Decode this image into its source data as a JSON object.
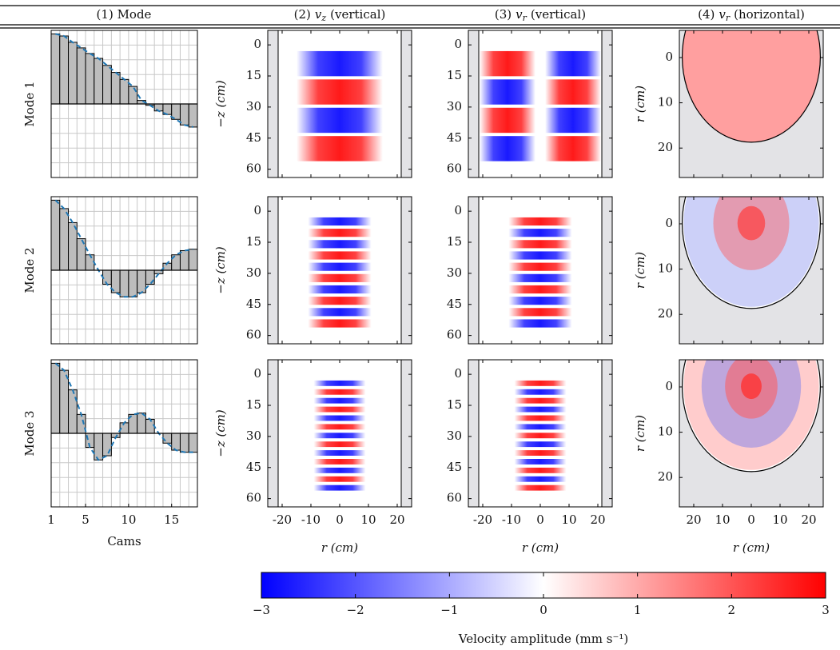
{
  "columns": [
    {
      "text": "(1) Mode"
    },
    {
      "prefix": "(2)",
      "symbol": "v",
      "subscript": "z",
      "suffix": "(vertical)"
    },
    {
      "prefix": "(3)",
      "symbol": "v",
      "subscript": "r",
      "suffix": "(vertical)"
    },
    {
      "prefix": "(4)",
      "symbol": "v",
      "subscript": "r",
      "suffix": "(horizontal)"
    }
  ],
  "rows": [
    "Mode 1",
    "Mode 2",
    "Mode 3"
  ],
  "chart_data": [
    {
      "type": "bar",
      "x": [
        1,
        2,
        3,
        4,
        5,
        6,
        7,
        8,
        9,
        10,
        11,
        12,
        13,
        14,
        15,
        16,
        17
      ],
      "values": [
        1.0,
        0.97,
        0.88,
        0.8,
        0.72,
        0.65,
        0.55,
        0.45,
        0.35,
        0.25,
        0.05,
        -0.02,
        -0.1,
        -0.15,
        -0.22,
        -0.3,
        -0.33
      ],
      "xlim": [
        1,
        18
      ],
      "ylim": [
        -1.05,
        1.05
      ],
      "color": "#bdbdbd",
      "line_color": "#1f77b4",
      "grid": true
    },
    {
      "type": "bar",
      "x": [
        1,
        2,
        3,
        4,
        5,
        6,
        7,
        8,
        9,
        10,
        11,
        12,
        13,
        14,
        15,
        16,
        17
      ],
      "values": [
        1.0,
        0.88,
        0.68,
        0.45,
        0.22,
        0.0,
        -0.2,
        -0.32,
        -0.38,
        -0.38,
        -0.32,
        -0.2,
        -0.05,
        0.1,
        0.22,
        0.28,
        0.3
      ],
      "xlim": [
        1,
        18
      ],
      "ylim": [
        -1.05,
        1.05
      ],
      "color": "#bdbdbd",
      "line_color": "#1f77b4",
      "grid": true
    },
    {
      "type": "bar",
      "x": [
        1,
        2,
        3,
        4,
        5,
        6,
        7,
        8,
        9,
        10,
        11,
        12,
        13,
        14,
        15,
        16,
        17
      ],
      "values": [
        1.0,
        0.9,
        0.62,
        0.27,
        -0.2,
        -0.38,
        -0.32,
        -0.06,
        0.15,
        0.27,
        0.29,
        0.2,
        0.0,
        -0.14,
        -0.24,
        -0.27,
        -0.27
      ],
      "xlim": [
        1,
        18
      ],
      "ylim": [
        -1.05,
        1.05
      ],
      "xticks": [
        1,
        5,
        10,
        15
      ],
      "xlabel": "Cams",
      "color": "#bdbdbd",
      "line_color": "#1f77b4",
      "grid": true
    }
  ],
  "axes": {
    "vertical": {
      "xlim": [
        -25,
        25
      ],
      "xticks": [
        -20,
        -10,
        0,
        10,
        20
      ],
      "ylim": [
        -7,
        64
      ],
      "yticks": [
        0,
        15,
        30,
        45,
        60
      ],
      "xlabel": "r (cm)",
      "ylabel": "−z (cm)"
    },
    "horizontal": {
      "xlim": [
        -25,
        25
      ],
      "xticks": [
        {
          "value": -20,
          "label": "20"
        },
        {
          "value": -10,
          "label": "10"
        },
        0,
        10,
        20
      ],
      "ylim": [
        -6,
        26.5
      ],
      "yticks": [
        0,
        10,
        20
      ],
      "xlabel": "r (cm)",
      "ylabel": "r (cm)"
    }
  },
  "colorbar": {
    "range": [
      -3,
      3
    ],
    "ticks": [
      {
        "value": -3,
        "label": "−3"
      },
      {
        "value": -2,
        "label": "−2"
      },
      {
        "value": -1,
        "label": "−1"
      },
      0,
      1,
      2,
      3
    ],
    "colors": [
      "#0000ff",
      "#ffffff",
      "#ff0000"
    ],
    "label": "Velocity amplitude (mm s⁻¹)"
  }
}
